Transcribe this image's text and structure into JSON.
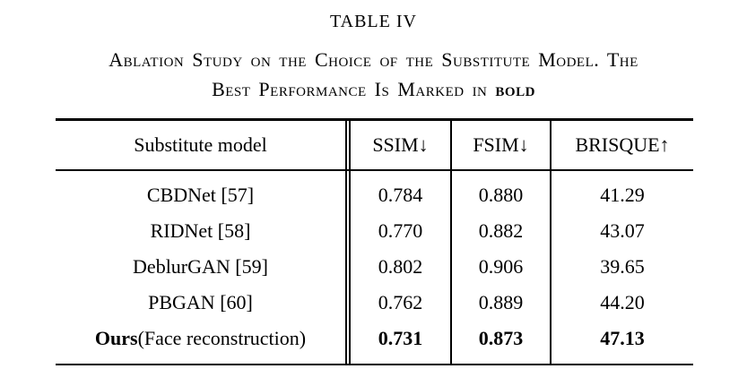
{
  "title": "TABLE IV",
  "caption": {
    "line1": "Ablation Study on the Choice of the Substitute Model. The",
    "line2_prefix": "Best Performance Is Marked in ",
    "line2_bold": "bold"
  },
  "table": {
    "columns": [
      "Substitute model",
      "SSIM↓",
      "FSIM↓",
      "BRISQUE↑"
    ],
    "rows": [
      {
        "model": "CBDNet [57]",
        "ssim": "0.784",
        "fsim": "0.880",
        "brisque": "41.29"
      },
      {
        "model": "RIDNet [58]",
        "ssim": "0.770",
        "fsim": "0.882",
        "brisque": "43.07"
      },
      {
        "model": "DeblurGAN [59]",
        "ssim": "0.802",
        "fsim": "0.906",
        "brisque": "39.65"
      },
      {
        "model": "PBGAN [60]",
        "ssim": "0.762",
        "fsim": "0.889",
        "brisque": "44.20"
      },
      {
        "model_bold": "Ours",
        "model_rest": " (Face reconstruction)",
        "ssim": "0.731",
        "fsim": "0.873",
        "brisque": "47.13",
        "is_best_row": true
      }
    ]
  },
  "colors": {
    "text": "#000000",
    "background": "#ffffff",
    "rule": "#000000"
  }
}
